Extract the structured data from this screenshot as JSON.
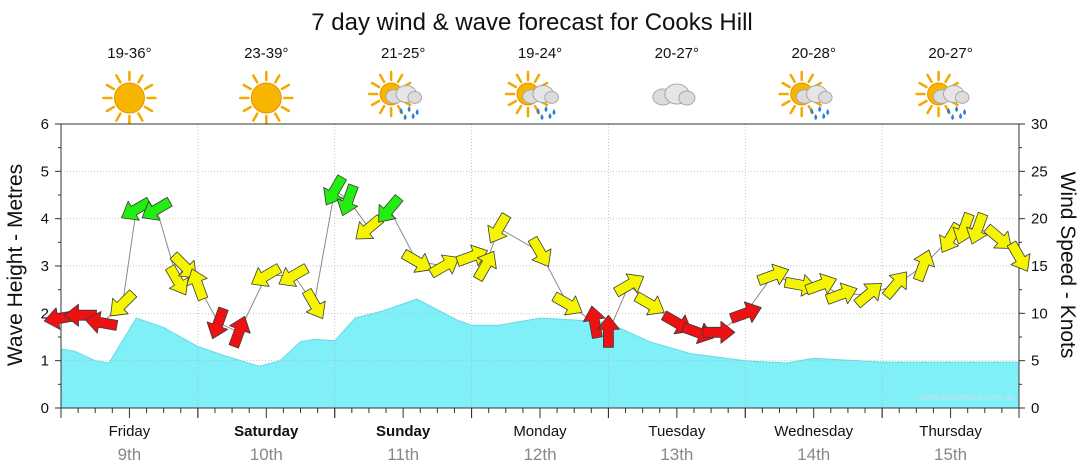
{
  "chart_data": {
    "type": "area",
    "title": "7 day wind & wave forecast for Cooks Hill",
    "ylabel_left": "Wave Height - Metres",
    "ylabel_right": "Wind Speed - Knots",
    "ylim_left": [
      0,
      6
    ],
    "ylim_right": [
      0,
      30
    ],
    "yticks_left": [
      "0",
      "1",
      "2",
      "3",
      "4",
      "5",
      "6"
    ],
    "yticks_right": [
      "0",
      "5",
      "10",
      "15",
      "20",
      "25",
      "30"
    ],
    "grid": true,
    "watermark": "www.seabreeze.com.au",
    "days": [
      {
        "name": "Friday",
        "date": "9th",
        "bold": false,
        "temp": "19-36°",
        "icon": "sun-icon"
      },
      {
        "name": "Saturday",
        "date": "10th",
        "bold": true,
        "temp": "23-39°",
        "icon": "sun-icon"
      },
      {
        "name": "Sunday",
        "date": "11th",
        "bold": true,
        "temp": "21-25°",
        "icon": "sun-cloud-rain-icon"
      },
      {
        "name": "Monday",
        "date": "12th",
        "bold": false,
        "temp": "19-24°",
        "icon": "sun-cloud-rain-icon"
      },
      {
        "name": "Tuesday",
        "date": "13th",
        "bold": false,
        "temp": "20-27°",
        "icon": "cloud-icon"
      },
      {
        "name": "Wednesday",
        "date": "14th",
        "bold": false,
        "temp": "20-28°",
        "icon": "sun-cloud-rain-icon"
      },
      {
        "name": "Thursday",
        "date": "15th",
        "bold": false,
        "temp": "20-27°",
        "icon": "sun-cloud-rain-icon"
      }
    ],
    "wave_series": {
      "name": "Wave Height",
      "x_days": [
        0,
        0.1,
        0.25,
        0.35,
        0.55,
        0.75,
        1.0,
        1.2,
        1.45,
        1.6,
        1.75,
        1.85,
        2.0,
        2.15,
        2.35,
        2.6,
        2.9,
        3.0,
        3.2,
        3.5,
        3.8,
        4.0,
        4.3,
        4.6,
        5.0,
        5.3,
        5.5,
        6.0,
        6.5,
        7.0
      ],
      "values": [
        1.25,
        1.2,
        1.0,
        0.95,
        1.9,
        1.7,
        1.3,
        1.1,
        0.88,
        1.0,
        1.4,
        1.45,
        1.42,
        1.9,
        2.05,
        2.3,
        1.85,
        1.75,
        1.75,
        1.9,
        1.85,
        1.8,
        1.4,
        1.15,
        1.0,
        0.95,
        1.05,
        0.97,
        0.97,
        0.97
      ]
    },
    "wind_series": {
      "name": "Wind",
      "x_days": [
        0.0,
        0.15,
        0.3,
        0.45,
        0.55,
        0.7,
        0.85,
        0.9,
        1.0,
        1.15,
        1.3,
        1.5,
        1.7,
        1.85,
        2.0,
        2.1,
        2.25,
        2.4,
        2.6,
        2.8,
        3.0,
        3.1,
        3.2,
        3.5,
        3.7,
        3.9,
        4.0,
        4.15,
        4.3,
        4.5,
        4.65,
        4.8,
        5.0,
        5.2,
        5.4,
        5.55,
        5.7,
        5.9,
        6.1,
        6.3,
        6.5,
        6.6,
        6.7,
        6.85,
        7.0
      ],
      "speed_kts": [
        9.5,
        9.8,
        9,
        11,
        21,
        21,
        13.5,
        15,
        13,
        9,
        8,
        14,
        14,
        11,
        23,
        22,
        19,
        21,
        15.5,
        15,
        16,
        15,
        19,
        16.5,
        11,
        9,
        8,
        13,
        11,
        9,
        8,
        8,
        10,
        14,
        13,
        13,
        12,
        12,
        13,
        15,
        18,
        19,
        19,
        18,
        16
      ],
      "direction_deg": [
        80,
        90,
        100,
        45,
        60,
        60,
        330,
        315,
        160,
        20,
        200,
        60,
        60,
        330,
        30,
        20,
        50,
        40,
        300,
        240,
        250,
        210,
        30,
        330,
        300,
        170,
        180,
        240,
        300,
        300,
        290,
        270,
        250,
        250,
        280,
        250,
        250,
        230,
        220,
        200,
        30,
        20,
        20,
        310,
        330
      ]
    }
  }
}
